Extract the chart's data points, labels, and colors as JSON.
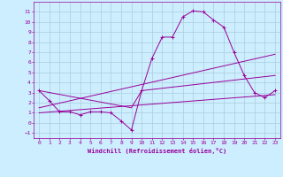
{
  "xlabel": "Windchill (Refroidissement éolien,°C)",
  "bg_color": "#cceeff",
  "grid_color": "#aaccdd",
  "line_color": "#990099",
  "xlim": [
    -0.5,
    23.5
  ],
  "ylim": [
    -1.5,
    12
  ],
  "xticks": [
    0,
    1,
    2,
    3,
    4,
    5,
    6,
    7,
    8,
    9,
    10,
    11,
    12,
    13,
    14,
    15,
    16,
    17,
    18,
    19,
    20,
    21,
    22,
    23
  ],
  "yticks": [
    -1,
    0,
    1,
    2,
    3,
    4,
    5,
    6,
    7,
    8,
    9,
    10,
    11
  ],
  "line1_x": [
    0,
    1,
    2,
    3,
    4,
    5,
    6,
    7,
    8,
    9,
    10,
    11,
    12,
    13,
    14,
    15,
    16,
    17,
    18,
    19,
    20,
    21,
    22,
    23
  ],
  "line1_y": [
    3.2,
    2.2,
    1.1,
    1.1,
    0.8,
    1.1,
    1.1,
    1.0,
    0.2,
    -0.7,
    3.2,
    6.4,
    8.5,
    8.5,
    10.5,
    11.1,
    11.0,
    10.2,
    9.5,
    7.0,
    4.7,
    3.0,
    2.5,
    3.2
  ],
  "line2_x": [
    0,
    23
  ],
  "line2_y": [
    1.5,
    6.8
  ],
  "line3_x": [
    0,
    23
  ],
  "line3_y": [
    1.0,
    2.8
  ],
  "line4_x": [
    0,
    9,
    10,
    23
  ],
  "line4_y": [
    3.2,
    1.5,
    3.2,
    4.7
  ]
}
